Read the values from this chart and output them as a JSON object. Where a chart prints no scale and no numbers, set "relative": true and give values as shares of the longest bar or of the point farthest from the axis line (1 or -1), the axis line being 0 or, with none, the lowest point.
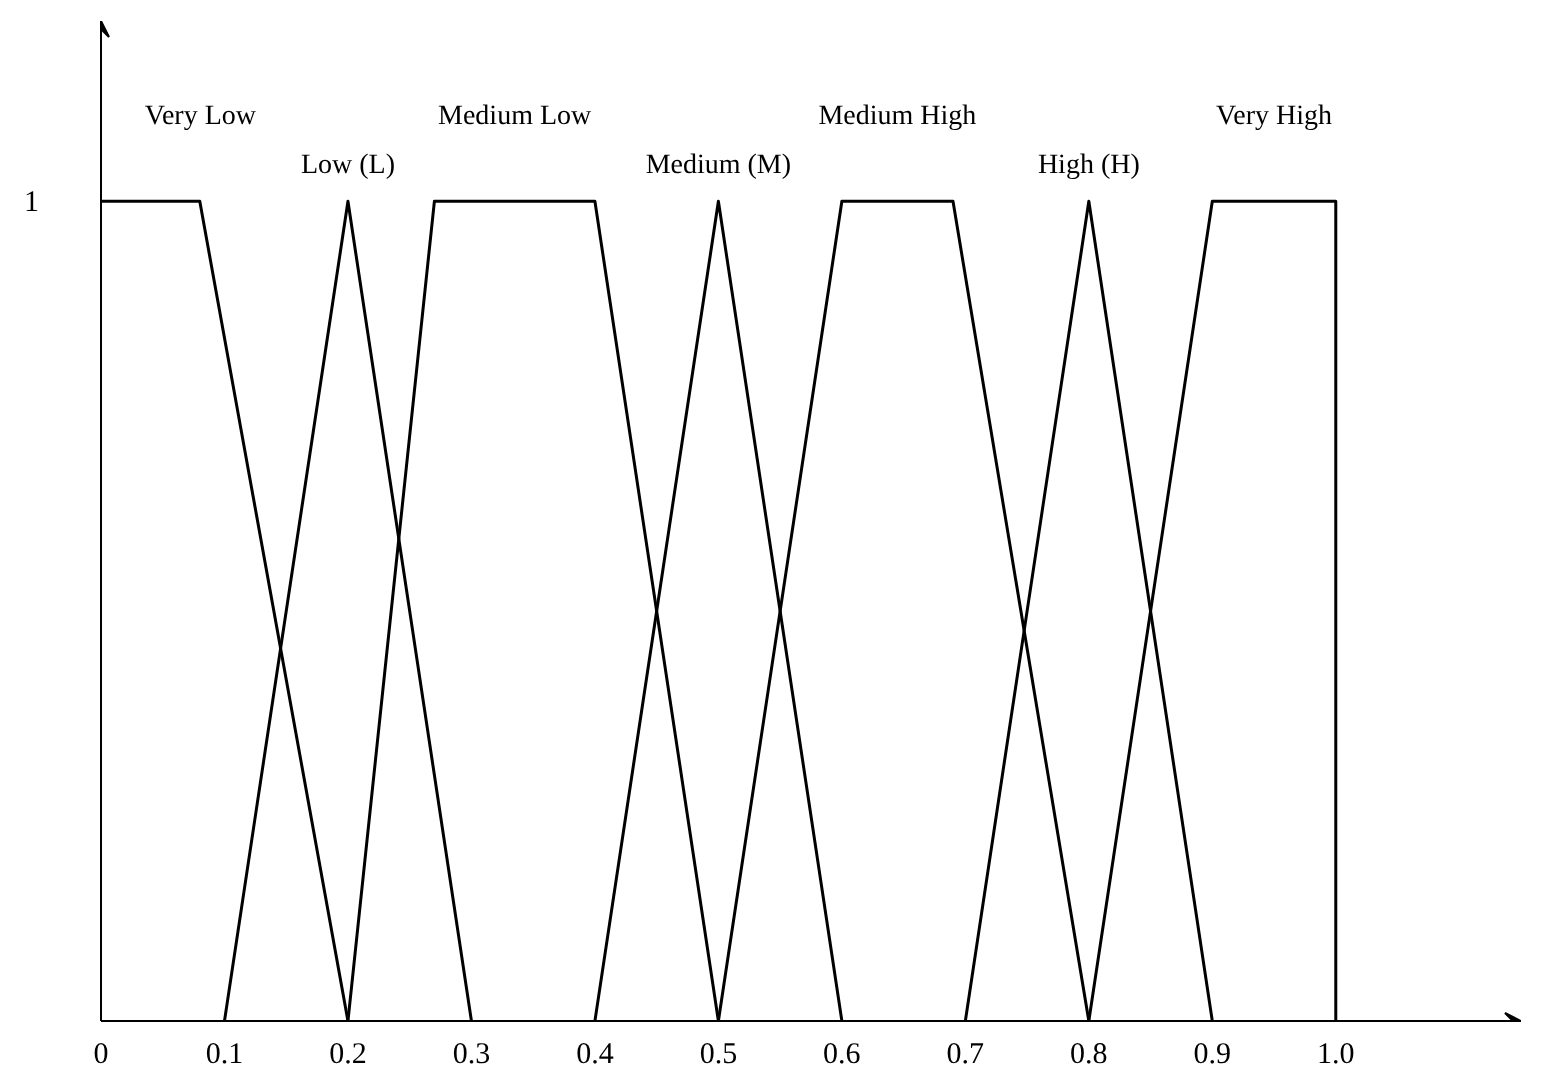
{
  "chart_data": {
    "type": "line",
    "series": [
      {
        "name": "Very Low",
        "color": "#000000",
        "x": [
          0,
          0.08,
          0.2
        ],
        "values": [
          1,
          1,
          0
        ]
      },
      {
        "name": "Low (L)",
        "color": "#000000",
        "x": [
          0.1,
          0.2,
          0.3
        ],
        "values": [
          0,
          1,
          0
        ]
      },
      {
        "name": "Medium Low",
        "color": "#000000",
        "x": [
          0.2,
          0.27,
          0.4,
          0.5
        ],
        "values": [
          0,
          1,
          1,
          0
        ]
      },
      {
        "name": "Medium (M)",
        "color": "#000000",
        "x": [
          0.4,
          0.5,
          0.6
        ],
        "values": [
          0,
          1,
          0
        ]
      },
      {
        "name": "Medium High",
        "color": "#000000",
        "x": [
          0.5,
          0.6,
          0.69,
          0.8
        ],
        "values": [
          0,
          1,
          1,
          0
        ]
      },
      {
        "name": "High (H)",
        "color": "#000000",
        "x": [
          0.7,
          0.8,
          0.9
        ],
        "values": [
          0,
          1,
          0
        ]
      },
      {
        "name": "Very High",
        "color": "#000000",
        "x": [
          0.8,
          0.9,
          1.0,
          1.0
        ],
        "values": [
          0,
          1,
          1,
          0
        ]
      }
    ],
    "xlim": [
      0,
      1.15
    ],
    "relative": true,
    "annotations": [
      "1"
    ],
    "xticks": [
      0,
      0.1,
      0.2,
      0.3,
      0.4,
      0.5,
      0.6,
      0.7,
      0.8,
      0.9,
      {
        "value": 1,
        "label": "1.0"
      }
    ],
    "grid": false,
    "line_style": "solid"
  }
}
